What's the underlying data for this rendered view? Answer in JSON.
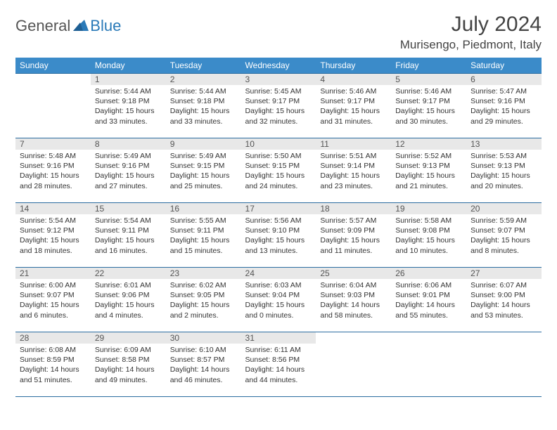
{
  "logo": {
    "general": "General",
    "blue": "Blue"
  },
  "title": "July 2024",
  "location": "Murisengo, Piedmont, Italy",
  "colors": {
    "header_bg": "#3b8bc9",
    "header_fg": "#ffffff",
    "border": "#2a6ca0",
    "daynum_bg": "#e8e8e8",
    "logo_blue": "#2a7ab8",
    "text": "#333333"
  },
  "weekdays": [
    "Sunday",
    "Monday",
    "Tuesday",
    "Wednesday",
    "Thursday",
    "Friday",
    "Saturday"
  ],
  "weeks": [
    [
      {
        "n": "",
        "sr": "",
        "ss": "",
        "dl": ""
      },
      {
        "n": "1",
        "sr": "Sunrise: 5:44 AM",
        "ss": "Sunset: 9:18 PM",
        "dl": "Daylight: 15 hours and 33 minutes."
      },
      {
        "n": "2",
        "sr": "Sunrise: 5:44 AM",
        "ss": "Sunset: 9:18 PM",
        "dl": "Daylight: 15 hours and 33 minutes."
      },
      {
        "n": "3",
        "sr": "Sunrise: 5:45 AM",
        "ss": "Sunset: 9:17 PM",
        "dl": "Daylight: 15 hours and 32 minutes."
      },
      {
        "n": "4",
        "sr": "Sunrise: 5:46 AM",
        "ss": "Sunset: 9:17 PM",
        "dl": "Daylight: 15 hours and 31 minutes."
      },
      {
        "n": "5",
        "sr": "Sunrise: 5:46 AM",
        "ss": "Sunset: 9:17 PM",
        "dl": "Daylight: 15 hours and 30 minutes."
      },
      {
        "n": "6",
        "sr": "Sunrise: 5:47 AM",
        "ss": "Sunset: 9:16 PM",
        "dl": "Daylight: 15 hours and 29 minutes."
      }
    ],
    [
      {
        "n": "7",
        "sr": "Sunrise: 5:48 AM",
        "ss": "Sunset: 9:16 PM",
        "dl": "Daylight: 15 hours and 28 minutes."
      },
      {
        "n": "8",
        "sr": "Sunrise: 5:49 AM",
        "ss": "Sunset: 9:16 PM",
        "dl": "Daylight: 15 hours and 27 minutes."
      },
      {
        "n": "9",
        "sr": "Sunrise: 5:49 AM",
        "ss": "Sunset: 9:15 PM",
        "dl": "Daylight: 15 hours and 25 minutes."
      },
      {
        "n": "10",
        "sr": "Sunrise: 5:50 AM",
        "ss": "Sunset: 9:15 PM",
        "dl": "Daylight: 15 hours and 24 minutes."
      },
      {
        "n": "11",
        "sr": "Sunrise: 5:51 AM",
        "ss": "Sunset: 9:14 PM",
        "dl": "Daylight: 15 hours and 23 minutes."
      },
      {
        "n": "12",
        "sr": "Sunrise: 5:52 AM",
        "ss": "Sunset: 9:13 PM",
        "dl": "Daylight: 15 hours and 21 minutes."
      },
      {
        "n": "13",
        "sr": "Sunrise: 5:53 AM",
        "ss": "Sunset: 9:13 PM",
        "dl": "Daylight: 15 hours and 20 minutes."
      }
    ],
    [
      {
        "n": "14",
        "sr": "Sunrise: 5:54 AM",
        "ss": "Sunset: 9:12 PM",
        "dl": "Daylight: 15 hours and 18 minutes."
      },
      {
        "n": "15",
        "sr": "Sunrise: 5:54 AM",
        "ss": "Sunset: 9:11 PM",
        "dl": "Daylight: 15 hours and 16 minutes."
      },
      {
        "n": "16",
        "sr": "Sunrise: 5:55 AM",
        "ss": "Sunset: 9:11 PM",
        "dl": "Daylight: 15 hours and 15 minutes."
      },
      {
        "n": "17",
        "sr": "Sunrise: 5:56 AM",
        "ss": "Sunset: 9:10 PM",
        "dl": "Daylight: 15 hours and 13 minutes."
      },
      {
        "n": "18",
        "sr": "Sunrise: 5:57 AM",
        "ss": "Sunset: 9:09 PM",
        "dl": "Daylight: 15 hours and 11 minutes."
      },
      {
        "n": "19",
        "sr": "Sunrise: 5:58 AM",
        "ss": "Sunset: 9:08 PM",
        "dl": "Daylight: 15 hours and 10 minutes."
      },
      {
        "n": "20",
        "sr": "Sunrise: 5:59 AM",
        "ss": "Sunset: 9:07 PM",
        "dl": "Daylight: 15 hours and 8 minutes."
      }
    ],
    [
      {
        "n": "21",
        "sr": "Sunrise: 6:00 AM",
        "ss": "Sunset: 9:07 PM",
        "dl": "Daylight: 15 hours and 6 minutes."
      },
      {
        "n": "22",
        "sr": "Sunrise: 6:01 AM",
        "ss": "Sunset: 9:06 PM",
        "dl": "Daylight: 15 hours and 4 minutes."
      },
      {
        "n": "23",
        "sr": "Sunrise: 6:02 AM",
        "ss": "Sunset: 9:05 PM",
        "dl": "Daylight: 15 hours and 2 minutes."
      },
      {
        "n": "24",
        "sr": "Sunrise: 6:03 AM",
        "ss": "Sunset: 9:04 PM",
        "dl": "Daylight: 15 hours and 0 minutes."
      },
      {
        "n": "25",
        "sr": "Sunrise: 6:04 AM",
        "ss": "Sunset: 9:03 PM",
        "dl": "Daylight: 14 hours and 58 minutes."
      },
      {
        "n": "26",
        "sr": "Sunrise: 6:06 AM",
        "ss": "Sunset: 9:01 PM",
        "dl": "Daylight: 14 hours and 55 minutes."
      },
      {
        "n": "27",
        "sr": "Sunrise: 6:07 AM",
        "ss": "Sunset: 9:00 PM",
        "dl": "Daylight: 14 hours and 53 minutes."
      }
    ],
    [
      {
        "n": "28",
        "sr": "Sunrise: 6:08 AM",
        "ss": "Sunset: 8:59 PM",
        "dl": "Daylight: 14 hours and 51 minutes."
      },
      {
        "n": "29",
        "sr": "Sunrise: 6:09 AM",
        "ss": "Sunset: 8:58 PM",
        "dl": "Daylight: 14 hours and 49 minutes."
      },
      {
        "n": "30",
        "sr": "Sunrise: 6:10 AM",
        "ss": "Sunset: 8:57 PM",
        "dl": "Daylight: 14 hours and 46 minutes."
      },
      {
        "n": "31",
        "sr": "Sunrise: 6:11 AM",
        "ss": "Sunset: 8:56 PM",
        "dl": "Daylight: 14 hours and 44 minutes."
      },
      {
        "n": "",
        "sr": "",
        "ss": "",
        "dl": ""
      },
      {
        "n": "",
        "sr": "",
        "ss": "",
        "dl": ""
      },
      {
        "n": "",
        "sr": "",
        "ss": "",
        "dl": ""
      }
    ]
  ]
}
